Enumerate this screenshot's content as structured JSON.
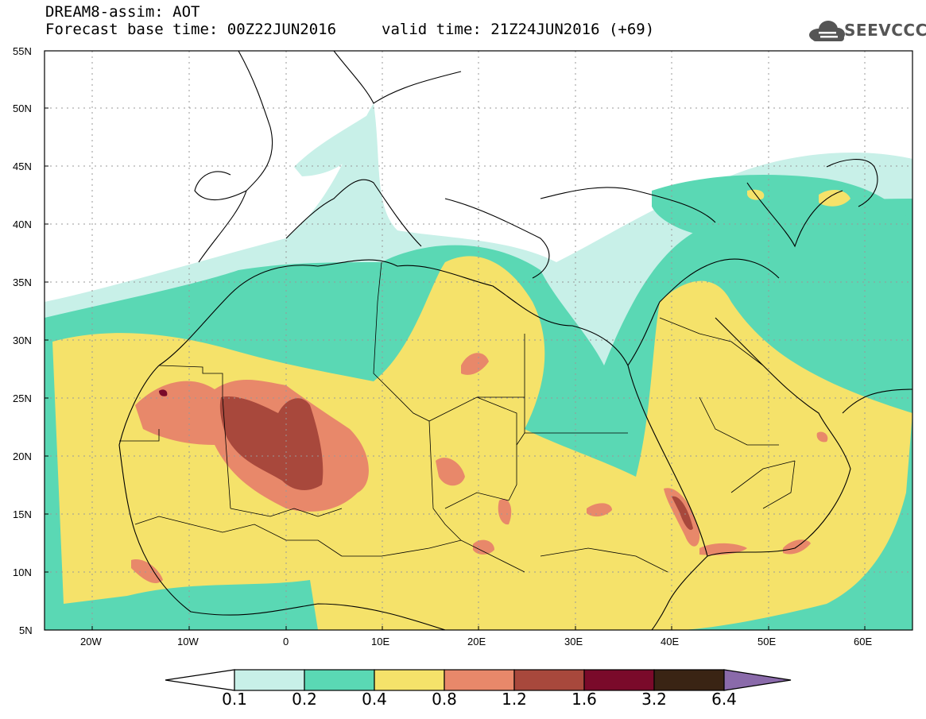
{
  "header": {
    "line1": "DREAM8-assim: AOT",
    "line2": "Forecast base time: 00Z22JUN2016",
    "valid": "valid time: 21Z24JUN2016 (+69)",
    "logo_text": "SEEVCCC"
  },
  "axes": {
    "lat_labels": [
      "55N",
      "50N",
      "45N",
      "40N",
      "35N",
      "30N",
      "25N",
      "20N",
      "15N",
      "10N",
      "5N"
    ],
    "lon_labels": [
      "20W",
      "10W",
      "0",
      "10E",
      "20E",
      "30E",
      "40E",
      "50E",
      "60E"
    ]
  },
  "legend": {
    "labels": [
      "0.1",
      "0.2",
      "0.4",
      "0.8",
      "1.2",
      "1.6",
      "3.2",
      "6.4"
    ],
    "colors": [
      "#ffffff",
      "#c8f0e8",
      "#5ad8b4",
      "#f5e26a",
      "#e8886a",
      "#a8483c",
      "#7a0a2a",
      "#3a2414",
      "#8a6aaa"
    ]
  },
  "colors": {
    "aot_0_1_0_2": "#c8f0e8",
    "aot_0_2_0_4": "#5ad8b4",
    "aot_0_4_0_8": "#f5e26a",
    "aot_0_8_1_2": "#e8886a",
    "aot_1_2_1_6": "#a8483c",
    "aot_1_6_3_2": "#7a0a2a"
  }
}
